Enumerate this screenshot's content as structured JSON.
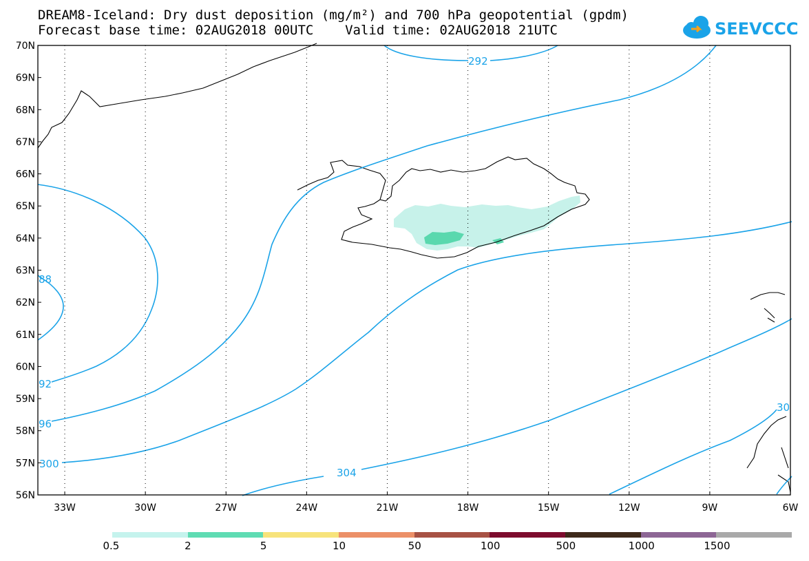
{
  "title": {
    "line1": "DREAM8-Iceland: Dry dust deposition (mg/m²) and 700 hPa geopotential (gpdm)",
    "line2": "Forecast base time: 02AUG2018 00UTC    Valid time: 02AUG2018 21UTC"
  },
  "logo": {
    "text": "SEEVCCC",
    "icon": "cloud-icon"
  },
  "map": {
    "lat_labels": [
      "70N",
      "69N",
      "68N",
      "67N",
      "66N",
      "65N",
      "64N",
      "63N",
      "62N",
      "61N",
      "60N",
      "59N",
      "58N",
      "57N",
      "56N"
    ],
    "lon_labels": [
      "33W",
      "30W",
      "27W",
      "24W",
      "21W",
      "18W",
      "15W",
      "12W",
      "9W",
      "6W"
    ],
    "contour_labels": [
      "292",
      "88",
      "92",
      "96",
      "300",
      "304",
      "30"
    ],
    "colors": {
      "contour": "#1aa3e8",
      "coast": "#000000",
      "dust_low": "#c7f2ea",
      "dust_mid": "#5ad8ae"
    }
  },
  "colorbar": {
    "labels": [
      "0.5",
      "2",
      "5",
      "10",
      "50",
      "100",
      "500",
      "1000",
      "1500"
    ],
    "colors": [
      "#c5f3ed",
      "#5fdcb3",
      "#f7e37b",
      "#ec9068",
      "#a75244",
      "#7d0c2e",
      "#3e2a1b",
      "#8d6695",
      "#a9a9a9"
    ]
  }
}
